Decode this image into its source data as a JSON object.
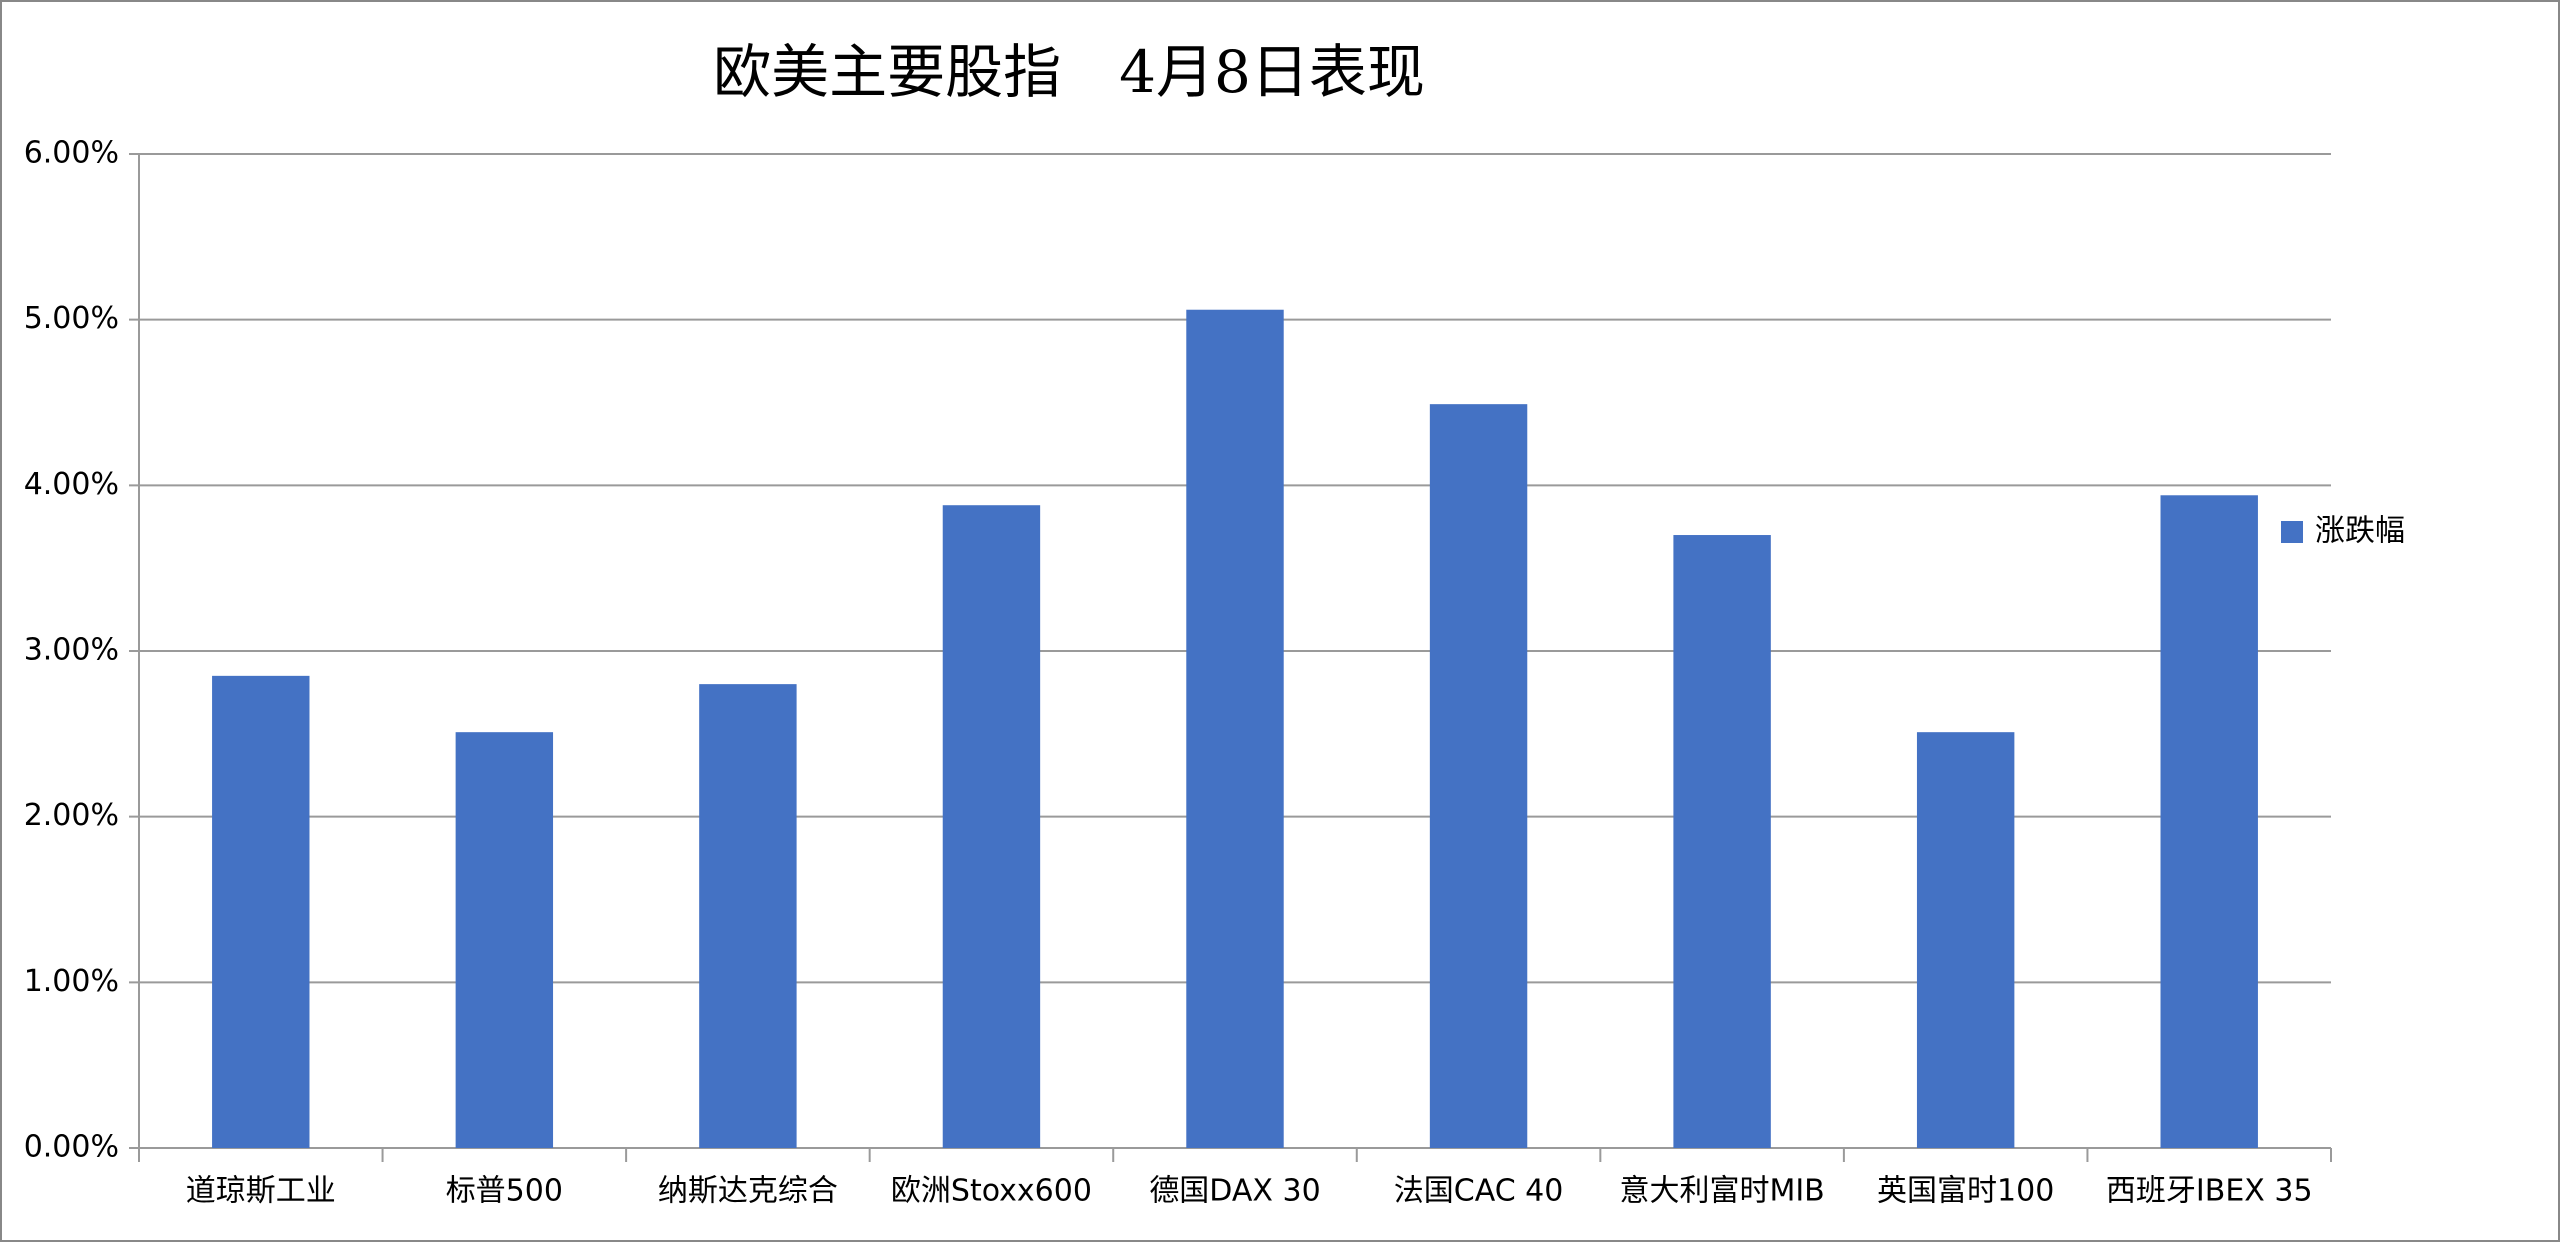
{
  "chart_data": {
    "type": "bar",
    "title": "欧美主要股指　4月8日表现",
    "categories": [
      "道琼斯工业",
      "标普500",
      "纳斯达克综合",
      "欧洲Stoxx600",
      "德国DAX 30",
      "法国CAC 40",
      "意大利富时MIB",
      "英国富时100",
      "西班牙IBEX 35"
    ],
    "series": [
      {
        "name": "涨跌幅",
        "color": "#4472c4",
        "values": [
          2.85,
          2.51,
          2.8,
          3.88,
          5.06,
          4.49,
          3.7,
          2.51,
          3.94
        ]
      }
    ],
    "ylim": [
      0,
      6
    ],
    "yticks": [
      {
        "value": 0,
        "label": "0.00%"
      },
      {
        "value": 1,
        "label": "1.00%"
      },
      {
        "value": 2,
        "label": "2.00%"
      },
      {
        "value": 3,
        "label": "3.00%"
      },
      {
        "value": 4,
        "label": "4.00%"
      },
      {
        "value": 5,
        "label": "5.00%"
      },
      {
        "value": 6,
        "label": "6.00%"
      }
    ],
    "grid": true,
    "legend": "right"
  }
}
